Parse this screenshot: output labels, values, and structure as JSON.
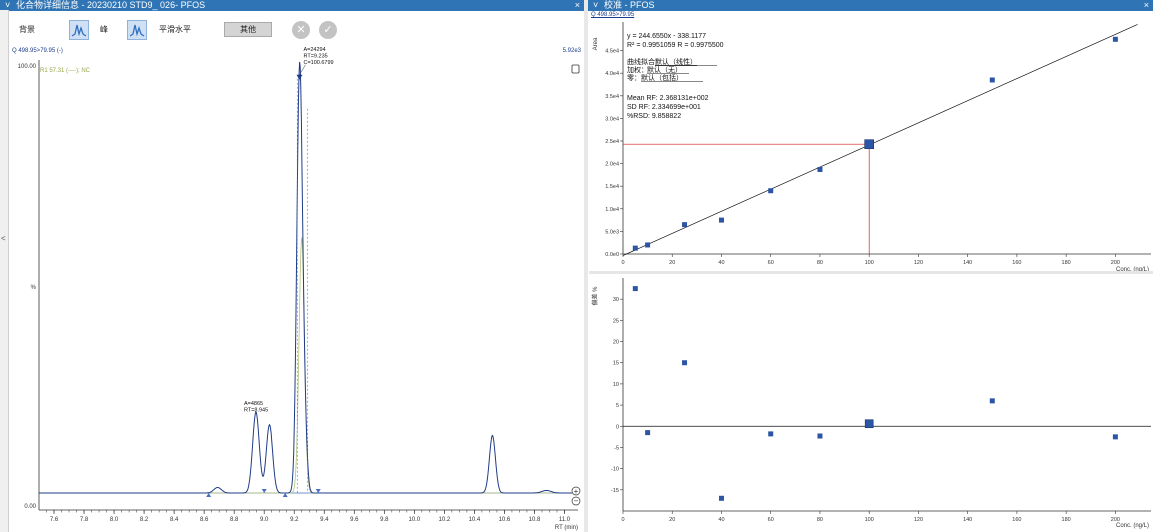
{
  "left_panel": {
    "pin": "˅",
    "title": "化合物详细信息 - 20230210 STD9_ 026- PFOS",
    "close": "×",
    "toolbar": {
      "background": "背景",
      "peak": "峰",
      "smooth": "平滑水平",
      "other": "其他"
    },
    "collapse_arrow": "<"
  },
  "right_panel": {
    "pin": "˅",
    "title": "校准 - PFOS",
    "close": "×",
    "subtitle": "Q 498.95>79.95"
  },
  "chromatogram": {
    "type": "line",
    "trace_label": "Q 498.95>79.95 (-)",
    "max_intensity": "5.92e3",
    "ref_label": "R1 57.31 (----); NC",
    "y_top_label": "100.00",
    "y_mid_label": "%",
    "y_zero_label": "0.00",
    "xlabel": "RT (min)",
    "xlim": [
      7.5,
      11.05
    ],
    "ylim": [
      0,
      100
    ],
    "ticks": [
      "7.6",
      "7.8",
      "8.0",
      "8.2",
      "8.4",
      "8.6",
      "8.8",
      "9.0",
      "9.2",
      "9.4",
      "9.6",
      "9.8",
      "10.0",
      "10.2",
      "10.4",
      "10.6",
      "10.8",
      "11.0"
    ],
    "peaks": [
      {
        "rt": 8.69,
        "h": 1.3,
        "w": 0.025
      },
      {
        "rt": 8.945,
        "h": 19,
        "w": 0.022
      },
      {
        "rt": 9.035,
        "h": 16,
        "w": 0.021
      },
      {
        "rt": 9.235,
        "h": 97,
        "w": 0.018
      },
      {
        "rt": 9.265,
        "h": 18,
        "w": 0.017
      },
      {
        "rt": 10.52,
        "h": 13.5,
        "w": 0.02
      },
      {
        "rt": 10.88,
        "h": 0.6,
        "w": 0.03
      }
    ],
    "ref_peaks": [
      {
        "rt": 9.25,
        "h": 60,
        "w": 0.018
      }
    ],
    "annotations": [
      {
        "lines": [
          "A=24294",
          "RT=9.235",
          "C=100.6799"
        ],
        "rt": 9.235
      },
      {
        "lines": [
          "A=4865",
          "RT=8.945"
        ],
        "rt": 8.945
      }
    ],
    "markers_rt": [
      8.63,
      9.0,
      9.14,
      9.36
    ],
    "colors": {
      "trace": "#1f3c88",
      "ref": "#b7c37a",
      "baseline": "#4a6fc0"
    }
  },
  "calibration": {
    "type": "scatter",
    "ylabel": "Area",
    "xlabel": "Conc. (ng/L)",
    "xlim": [
      0,
      210
    ],
    "ylim": [
      0,
      50000
    ],
    "xticks": [
      "0",
      "20",
      "40",
      "60",
      "80",
      "100",
      "120",
      "140",
      "160",
      "180",
      "200"
    ],
    "yticks": [
      "0.0e0",
      "5.0e3",
      "1.0e4",
      "1.5e4",
      "2.0e4",
      "2.5e4",
      "3.0e4",
      "3.5e4",
      "4.0e4",
      "4.5e4"
    ],
    "equation": "y = 244.6550x - 338.1177",
    "r2_line": "R² = 0.9951059   R = 0.9975500",
    "fit_label": "曲线拟合：",
    "fit_value": "默认（线性）",
    "weight_label": "加权：",
    "weight_value": "默认（无）",
    "origin_label": "零：",
    "origin_value": "默认（包括）",
    "mean_rf": "Mean RF: 2.368131e+002",
    "sd_rf": "SD RF: 2.334699e+001",
    "rsd": "%RSD: 9.858822",
    "slope": 244.655,
    "intercept": -338.1177,
    "points": [
      {
        "x": 5,
        "y": 1300
      },
      {
        "x": 10,
        "y": 2000
      },
      {
        "x": 25,
        "y": 6500
      },
      {
        "x": 40,
        "y": 7500
      },
      {
        "x": 60,
        "y": 14000
      },
      {
        "x": 80,
        "y": 18700
      },
      {
        "x": 150,
        "y": 38500
      },
      {
        "x": 200,
        "y": 47500
      }
    ],
    "current": {
      "x": 100,
      "y": 24294
    },
    "colors": {
      "point": "#2d55a5",
      "line": "#111111",
      "crosshair": "#d11f1f"
    }
  },
  "residuals": {
    "type": "scatter",
    "ylabel": "偏差 %",
    "xlabel": "Conc. (ng/L)",
    "xlim": [
      0,
      210
    ],
    "ylim": [
      -20,
      35
    ],
    "xticks": [
      "0",
      "20",
      "40",
      "60",
      "80",
      "100",
      "120",
      "140",
      "160",
      "180",
      "200"
    ],
    "yticks": [
      "30",
      "25",
      "20",
      "15",
      "10",
      "5",
      "0",
      "-5",
      "-10",
      "-15"
    ],
    "points": [
      {
        "x": 5,
        "y": 32.5
      },
      {
        "x": 10,
        "y": -1.5
      },
      {
        "x": 25,
        "y": 15
      },
      {
        "x": 40,
        "y": -17
      },
      {
        "x": 60,
        "y": -1.8
      },
      {
        "x": 80,
        "y": -2.3
      },
      {
        "x": 150,
        "y": 6
      },
      {
        "x": 200,
        "y": -2.5
      }
    ],
    "current": {
      "x": 100,
      "y": 0.6
    }
  }
}
